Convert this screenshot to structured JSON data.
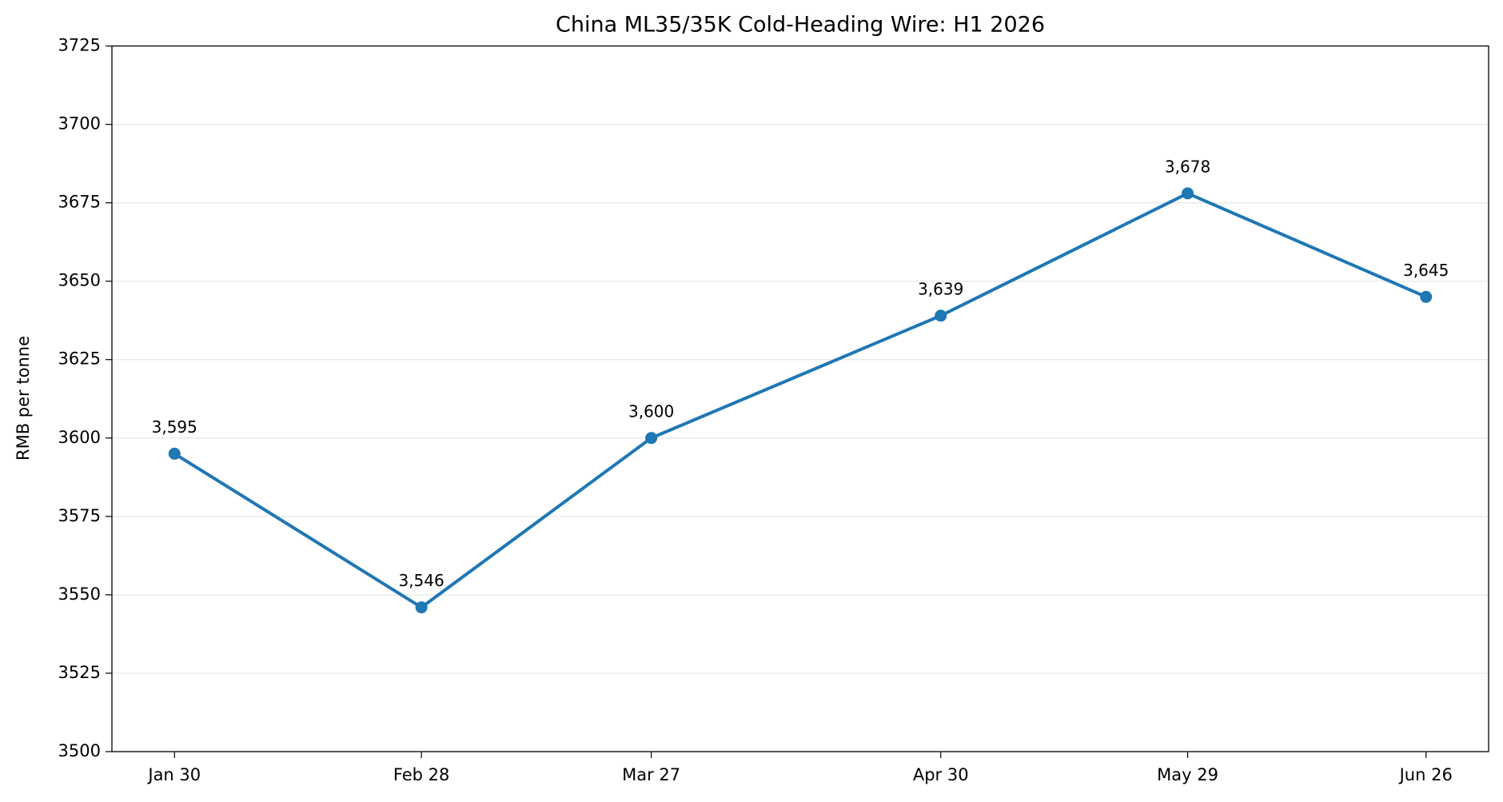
{
  "chart_data": {
    "type": "line",
    "title": "China ML35/35K Cold-Heading Wire: H1 2026",
    "y_label": "RMB per tonne",
    "x": [
      "Jan 30",
      "Feb 28",
      "Mar 27",
      "Apr 30",
      "May 29",
      "Jun 26"
    ],
    "series": [
      {
        "name": "ML35/35K",
        "color": "#1f77b4",
        "values": [
          3595,
          3546,
          3600,
          3639,
          3678,
          3645
        ],
        "value_labels": [
          "3,595",
          "3,546",
          "3,600",
          "3,639",
          "3,678",
          "3,645"
        ]
      }
    ],
    "ylim": [
      3500,
      3725
    ],
    "yticks": [
      3500,
      3525,
      3550,
      3575,
      3600,
      3625,
      3650,
      3675,
      3700,
      3725
    ],
    "grid": true
  }
}
